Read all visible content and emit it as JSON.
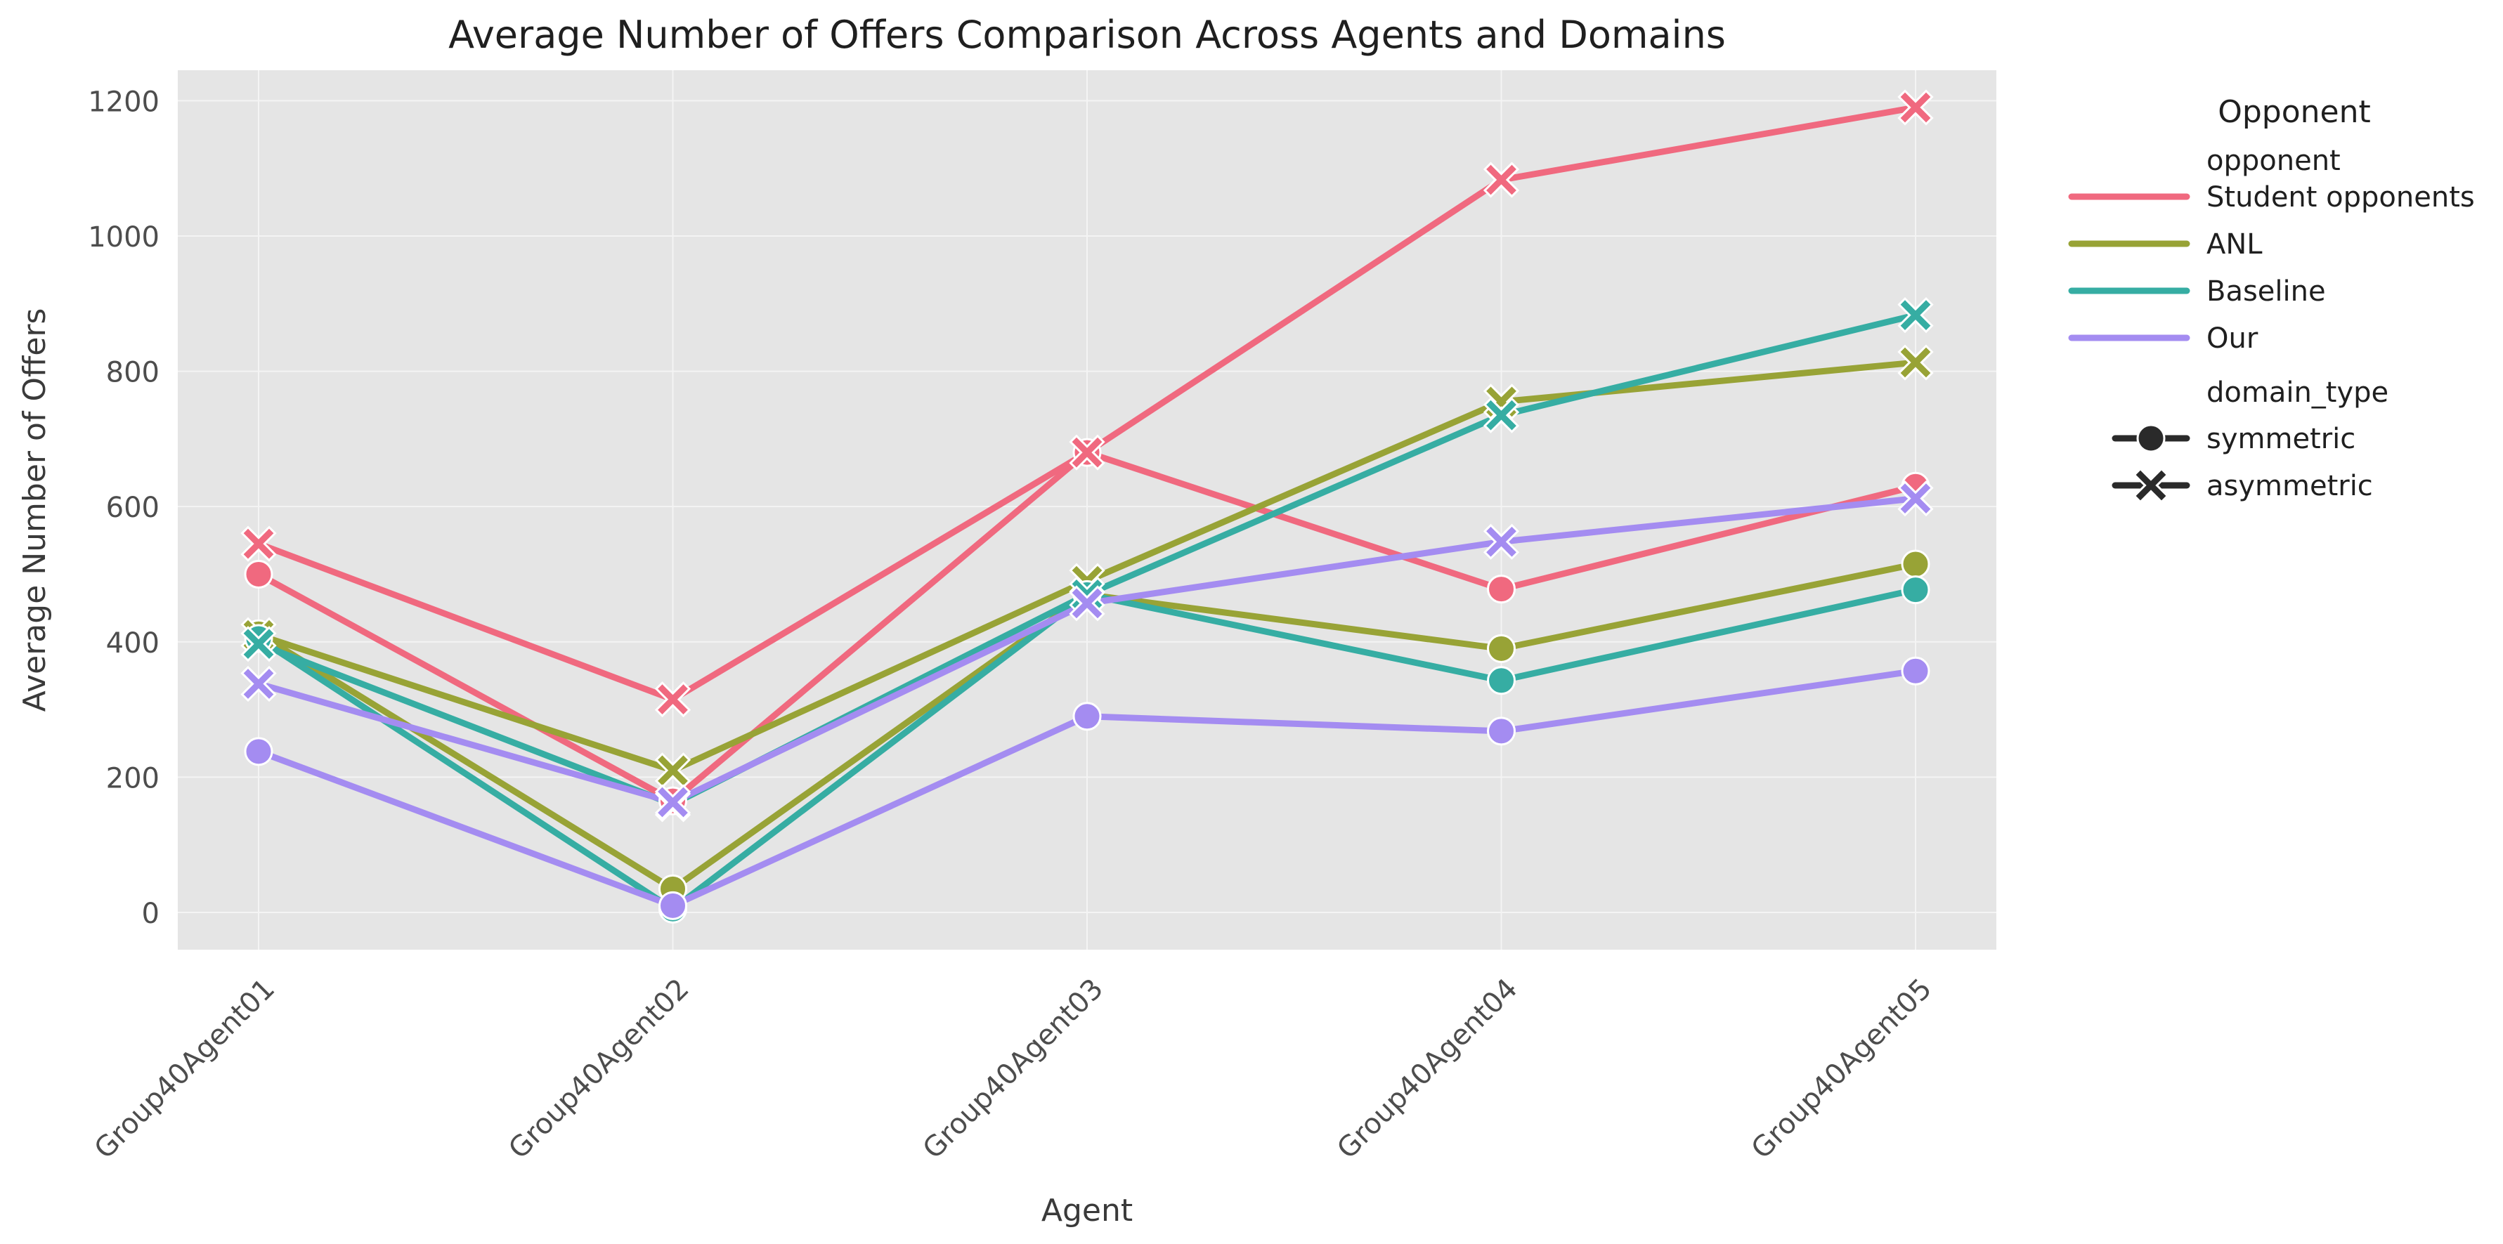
{
  "chart_data": {
    "type": "line",
    "title": "Average Number of Offers Comparison Across Agents and Domains",
    "xlabel": "Agent",
    "ylabel": "Average Number of Offers",
    "categories": [
      "Group40Agent01",
      "Group40Agent02",
      "Group40Agent03",
      "Group40Agent04",
      "Group40Agent05"
    ],
    "ylim": [
      -55,
      1245
    ],
    "yticks": [
      0,
      200,
      400,
      600,
      800,
      1000,
      1200
    ],
    "grid": true,
    "legend": {
      "title": "Opponent",
      "placement": "outside-right",
      "hue_header": "opponent",
      "style_header": "domain_type",
      "hue_entries": [
        {
          "name": "Student opponents",
          "color": "#f0697f"
        },
        {
          "name": "ANL",
          "color": "#98a336"
        },
        {
          "name": "Baseline",
          "color": "#36ada3"
        },
        {
          "name": "Our",
          "color": "#a48cf1"
        }
      ],
      "style_entries": [
        {
          "name": "symmetric",
          "marker": "circle"
        },
        {
          "name": "asymmetric",
          "marker": "x"
        }
      ]
    },
    "series": [
      {
        "name": "Student opponents",
        "domain_type": "symmetric",
        "marker": "circle",
        "color": "#f0697f",
        "values": [
          500,
          165,
          680,
          478,
          630
        ]
      },
      {
        "name": "Student opponents",
        "domain_type": "asymmetric",
        "marker": "x",
        "color": "#f0697f",
        "values": [
          545,
          315,
          680,
          1083,
          1190
        ]
      },
      {
        "name": "ANL",
        "domain_type": "symmetric",
        "marker": "circle",
        "color": "#98a336",
        "values": [
          412,
          35,
          470,
          390,
          515
        ]
      },
      {
        "name": "ANL",
        "domain_type": "asymmetric",
        "marker": "x",
        "color": "#98a336",
        "values": [
          410,
          210,
          490,
          755,
          813
        ]
      },
      {
        "name": "Baseline",
        "domain_type": "symmetric",
        "marker": "circle",
        "color": "#36ada3",
        "values": [
          405,
          5,
          470,
          343,
          477
        ]
      },
      {
        "name": "Baseline",
        "domain_type": "asymmetric",
        "marker": "x",
        "color": "#36ada3",
        "values": [
          397,
          160,
          470,
          735,
          883
        ]
      },
      {
        "name": "Our",
        "domain_type": "symmetric",
        "marker": "circle",
        "color": "#a48cf1",
        "values": [
          238,
          10,
          290,
          268,
          357
        ]
      },
      {
        "name": "Our",
        "domain_type": "asymmetric",
        "marker": "x",
        "color": "#a48cf1",
        "values": [
          338,
          163,
          457,
          548,
          612
        ]
      }
    ],
    "colors": {
      "plot_background": "#e5e5e5",
      "grid": "#f4f4f4",
      "text": "#3a3a3a",
      "tick_text": "#4d4d4d",
      "legend_marker": "#2a2a2a"
    }
  }
}
